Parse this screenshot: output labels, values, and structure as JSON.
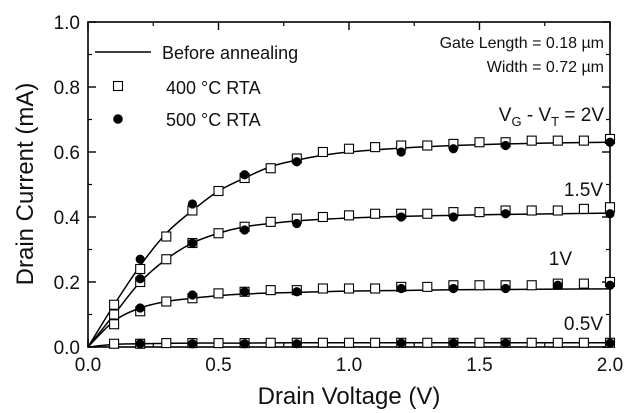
{
  "chart_data": {
    "type": "line",
    "xlabel": "Drain Voltage (V)",
    "ylabel": "Drain Current (mA)",
    "xlim": [
      0.0,
      2.0
    ],
    "ylim": [
      0.0,
      1.0
    ],
    "x_ticks": [
      "0.0",
      "0.5",
      "1.0",
      "1.5",
      "2.0"
    ],
    "y_ticks": [
      "0.0",
      "0.2",
      "0.4",
      "0.6",
      "0.8",
      "1.0"
    ],
    "grid": false,
    "legend_position": "top-left",
    "annotations": {
      "gate_length": "Gate Length = 0.18 µm",
      "width": "Width = 0.72 µm",
      "vg_vt_prefix": "V",
      "vg_vt_g": "G",
      "vg_vt_dash": " - V",
      "vg_vt_t": "T",
      "vg_vt_value": " = 2V",
      "label_1_5v": "1.5V",
      "label_1v": "1V",
      "label_0_5v": "0.5V"
    },
    "legend": {
      "before": "Before annealing",
      "rta400": "400 °C RTA",
      "rta500": "500 °C RTA"
    },
    "series": [
      {
        "name": "Before annealing",
        "style": "line",
        "curves": [
          {
            "x": [
              0.0,
              0.1,
              0.2,
              0.3,
              0.4,
              0.5,
              0.6,
              0.7,
              0.8,
              0.9,
              1.0,
              1.2,
              1.4,
              1.6,
              1.8,
              2.0
            ],
            "y": [
              0.0,
              0.13,
              0.25,
              0.35,
              0.42,
              0.48,
              0.52,
              0.555,
              0.575,
              0.59,
              0.6,
              0.612,
              0.62,
              0.625,
              0.628,
              0.63
            ]
          },
          {
            "x": [
              0.0,
              0.1,
              0.2,
              0.3,
              0.4,
              0.5,
              0.6,
              0.7,
              0.8,
              0.9,
              1.0,
              1.2,
              1.4,
              1.6,
              1.8,
              2.0
            ],
            "y": [
              0.0,
              0.1,
              0.2,
              0.27,
              0.32,
              0.35,
              0.37,
              0.38,
              0.388,
              0.393,
              0.397,
              0.402,
              0.405,
              0.408,
              0.41,
              0.412
            ]
          },
          {
            "x": [
              0.0,
              0.1,
              0.2,
              0.3,
              0.4,
              0.5,
              0.6,
              0.7,
              0.8,
              0.9,
              1.0,
              1.2,
              1.4,
              1.6,
              1.8,
              2.0
            ],
            "y": [
              0.0,
              0.08,
              0.12,
              0.14,
              0.15,
              0.158,
              0.163,
              0.166,
              0.168,
              0.17,
              0.172,
              0.174,
              0.176,
              0.177,
              0.178,
              0.179
            ]
          },
          {
            "x": [
              0.0,
              0.1,
              0.2,
              0.4,
              0.6,
              0.8,
              1.0,
              1.2,
              1.4,
              1.6,
              1.8,
              2.0
            ],
            "y": [
              0.0,
              0.008,
              0.01,
              0.012,
              0.012,
              0.013,
              0.013,
              0.013,
              0.013,
              0.013,
              0.013,
              0.013
            ]
          }
        ]
      },
      {
        "name": "400 °C RTA",
        "style": "open-square",
        "curves": [
          {
            "x": [
              0.1,
              0.2,
              0.3,
              0.4,
              0.5,
              0.6,
              0.7,
              0.8,
              0.9,
              1.0,
              1.1,
              1.2,
              1.3,
              1.4,
              1.5,
              1.6,
              1.7,
              1.8,
              1.9,
              2.0
            ],
            "y": [
              0.13,
              0.24,
              0.34,
              0.42,
              0.48,
              0.52,
              0.55,
              0.58,
              0.6,
              0.61,
              0.615,
              0.62,
              0.62,
              0.625,
              0.63,
              0.63,
              0.635,
              0.635,
              0.635,
              0.64
            ]
          },
          {
            "x": [
              0.1,
              0.2,
              0.3,
              0.4,
              0.5,
              0.6,
              0.7,
              0.8,
              0.9,
              1.0,
              1.1,
              1.2,
              1.3,
              1.4,
              1.5,
              1.6,
              1.7,
              1.8,
              1.9,
              2.0
            ],
            "y": [
              0.1,
              0.2,
              0.27,
              0.32,
              0.35,
              0.37,
              0.385,
              0.395,
              0.4,
              0.405,
              0.41,
              0.41,
              0.41,
              0.415,
              0.415,
              0.42,
              0.42,
              0.42,
              0.425,
              0.43
            ]
          },
          {
            "x": [
              0.1,
              0.2,
              0.3,
              0.4,
              0.5,
              0.6,
              0.7,
              0.8,
              0.9,
              1.0,
              1.1,
              1.2,
              1.3,
              1.4,
              1.5,
              1.6,
              1.7,
              1.8,
              1.9,
              2.0
            ],
            "y": [
              0.07,
              0.11,
              0.14,
              0.15,
              0.165,
              0.17,
              0.175,
              0.175,
              0.18,
              0.18,
              0.18,
              0.185,
              0.185,
              0.19,
              0.19,
              0.19,
              0.19,
              0.195,
              0.195,
              0.2
            ]
          },
          {
            "x": [
              0.1,
              0.2,
              0.3,
              0.4,
              0.5,
              0.6,
              0.7,
              0.8,
              0.9,
              1.0,
              1.1,
              1.2,
              1.3,
              1.4,
              1.5,
              1.6,
              1.7,
              1.8,
              1.9,
              2.0
            ],
            "y": [
              0.01,
              0.01,
              0.012,
              0.012,
              0.012,
              0.012,
              0.013,
              0.013,
              0.013,
              0.013,
              0.013,
              0.013,
              0.013,
              0.013,
              0.013,
              0.013,
              0.013,
              0.013,
              0.013,
              0.013
            ]
          }
        ]
      },
      {
        "name": "500 °C RTA",
        "style": "filled-circle",
        "curves": [
          {
            "x": [
              0.2,
              0.4,
              0.6,
              0.8,
              1.2,
              1.4,
              1.6,
              2.0
            ],
            "y": [
              0.27,
              0.44,
              0.53,
              0.57,
              0.6,
              0.61,
              0.62,
              0.63
            ]
          },
          {
            "x": [
              0.2,
              0.4,
              0.6,
              0.8,
              1.2,
              1.4,
              1.6,
              2.0
            ],
            "y": [
              0.21,
              0.32,
              0.36,
              0.38,
              0.4,
              0.4,
              0.41,
              0.41
            ]
          },
          {
            "x": [
              0.2,
              0.4,
              0.6,
              0.8,
              1.2,
              1.4,
              1.6,
              1.8,
              2.0
            ],
            "y": [
              0.12,
              0.16,
              0.17,
              0.17,
              0.18,
              0.18,
              0.18,
              0.19,
              0.19
            ]
          },
          {
            "x": [
              0.2,
              0.4,
              0.6,
              0.8,
              1.2,
              1.4,
              1.6,
              2.0
            ],
            "y": [
              0.01,
              0.01,
              0.01,
              0.01,
              0.012,
              0.012,
              0.012,
              0.012
            ]
          }
        ]
      }
    ]
  }
}
